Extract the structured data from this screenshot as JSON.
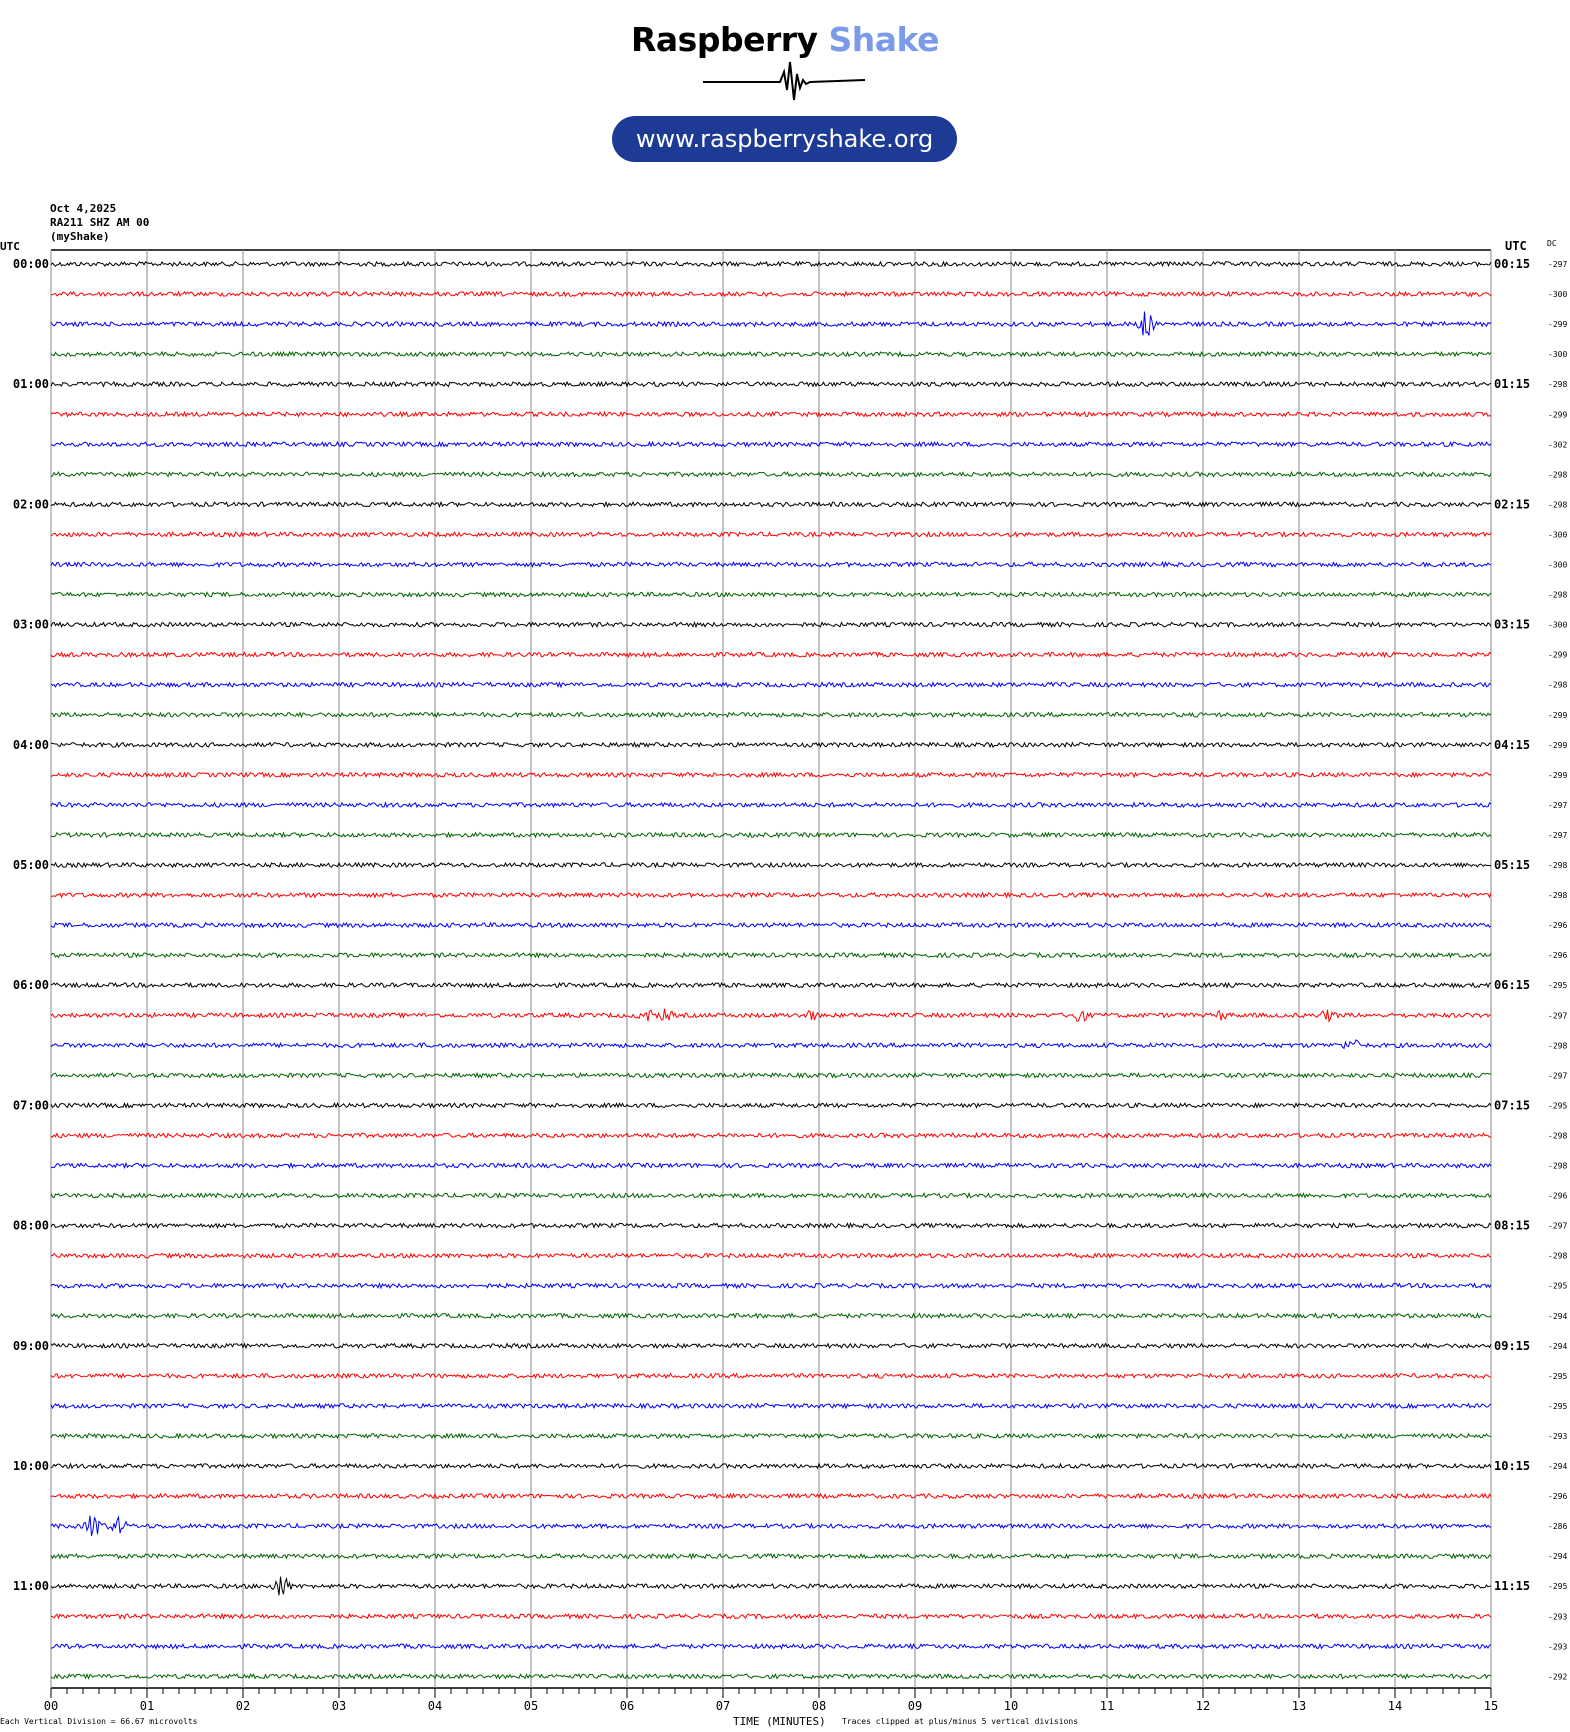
{
  "logo": {
    "word1": "Raspberry",
    "word2": "Shake",
    "word1_color": "#000000",
    "word2_color": "#7b9be8",
    "url": "www.raspberryshake.org",
    "url_bg": "#1d3a94"
  },
  "header": {
    "date": "Oct 4,2025",
    "station": "RA211 SHZ AM 00",
    "network": "(myShake)"
  },
  "left_axis": {
    "title": "UTC",
    "labels": [
      "00:00",
      "01:00",
      "02:00",
      "03:00",
      "04:00",
      "05:00",
      "06:00",
      "07:00",
      "08:00",
      "09:00",
      "10:00",
      "11:00"
    ]
  },
  "right_axis": {
    "title": "UTC",
    "labels": [
      "00:15",
      "01:15",
      "02:15",
      "03:15",
      "04:15",
      "05:15",
      "06:15",
      "07:15",
      "08:15",
      "09:15",
      "10:15",
      "11:15"
    ]
  },
  "dc": {
    "title": "DC",
    "values": [
      "-297",
      "-300",
      "-299",
      "-300",
      "-298",
      "-299",
      "-302",
      "-298",
      "-298",
      "-300",
      "-300",
      "-298",
      "-300",
      "-299",
      "-298",
      "-299",
      "-299",
      "-299",
      "-297",
      "-297",
      "-298",
      "-298",
      "-296",
      "-296",
      "-295",
      "-297",
      "-298",
      "-297",
      "-295",
      "-298",
      "-298",
      "-296",
      "-297",
      "-298",
      "-295",
      "-294",
      "-294",
      "-295",
      "-295",
      "-293",
      "-294",
      "-296",
      "-286",
      "-294",
      "-295",
      "-293",
      "-293",
      "-292"
    ]
  },
  "trace_colors": [
    "#000000",
    "#ff0000",
    "#0000ff",
    "#006400"
  ],
  "x_axis": {
    "ticks": [
      "00",
      "01",
      "02",
      "03",
      "04",
      "05",
      "06",
      "07",
      "08",
      "09",
      "10",
      "11",
      "12",
      "13",
      "14",
      "15"
    ],
    "title": "TIME (MINUTES)"
  },
  "footer": {
    "scale": "Each Vertical Division =   66.67 microvolts",
    "clip_note": "Traces clipped at plus/minus 5 vertical divisions"
  }
}
